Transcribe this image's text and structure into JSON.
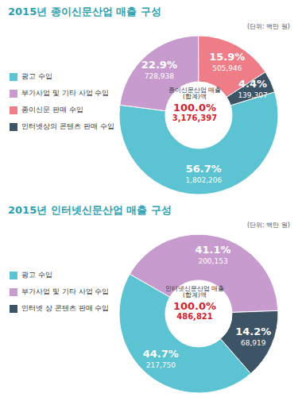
{
  "chart_data": [
    {
      "type": "pie",
      "title": "2015년 종이신문산업 매출 구성",
      "unit": "(단위: 백만 원)",
      "categories": [
        "광고 수입",
        "부가사업 및 기타 사업 수입",
        "종이신문 판매 수입",
        "인터넷상의 콘텐츠 판매 수입"
      ],
      "values": [
        56.7,
        22.9,
        15.9,
        4.4
      ],
      "value_labels": [
        "56.7%",
        "22.9%",
        "15.9%",
        "4.4%"
      ],
      "amounts": [
        1802206,
        728938,
        505946,
        139307
      ],
      "amount_labels": [
        "1,802,206",
        "728,938",
        "505,946",
        "139,307"
      ],
      "colors": [
        "#5bc3d1",
        "#c89bcf",
        "#ee7d88",
        "#3d5366"
      ],
      "total_label": "종이신문산업 매출(합계)액",
      "total_percent": 100.0,
      "total_percent_label": "100.0%",
      "total": 3176397,
      "total_label_value": "3,176,397",
      "legend": "left",
      "data_labels": true
    },
    {
      "type": "pie",
      "title": "2015년 인터넷신문산업 매출 구성",
      "unit": "(단위: 백만 원)",
      "categories": [
        "광고 수입",
        "부가사업 및 기타 사업 수입",
        "인터넷 상 콘텐츠 판매 수입"
      ],
      "values": [
        44.7,
        41.1,
        14.2
      ],
      "value_labels": [
        "44.7%",
        "41.1%",
        "14.2%"
      ],
      "amounts": [
        217750,
        200153,
        68919
      ],
      "amount_labels": [
        "217,750",
        "200,153",
        "68,919"
      ],
      "colors": [
        "#5bc3d1",
        "#c89bcf",
        "#3d5366"
      ],
      "total_label": "인터넷신문산업 매출(합계)액",
      "total_percent": 100.0,
      "total_percent_label": "100.0%",
      "total": 486821,
      "total_label_value": "486,821",
      "legend": "left",
      "data_labels": true
    }
  ]
}
